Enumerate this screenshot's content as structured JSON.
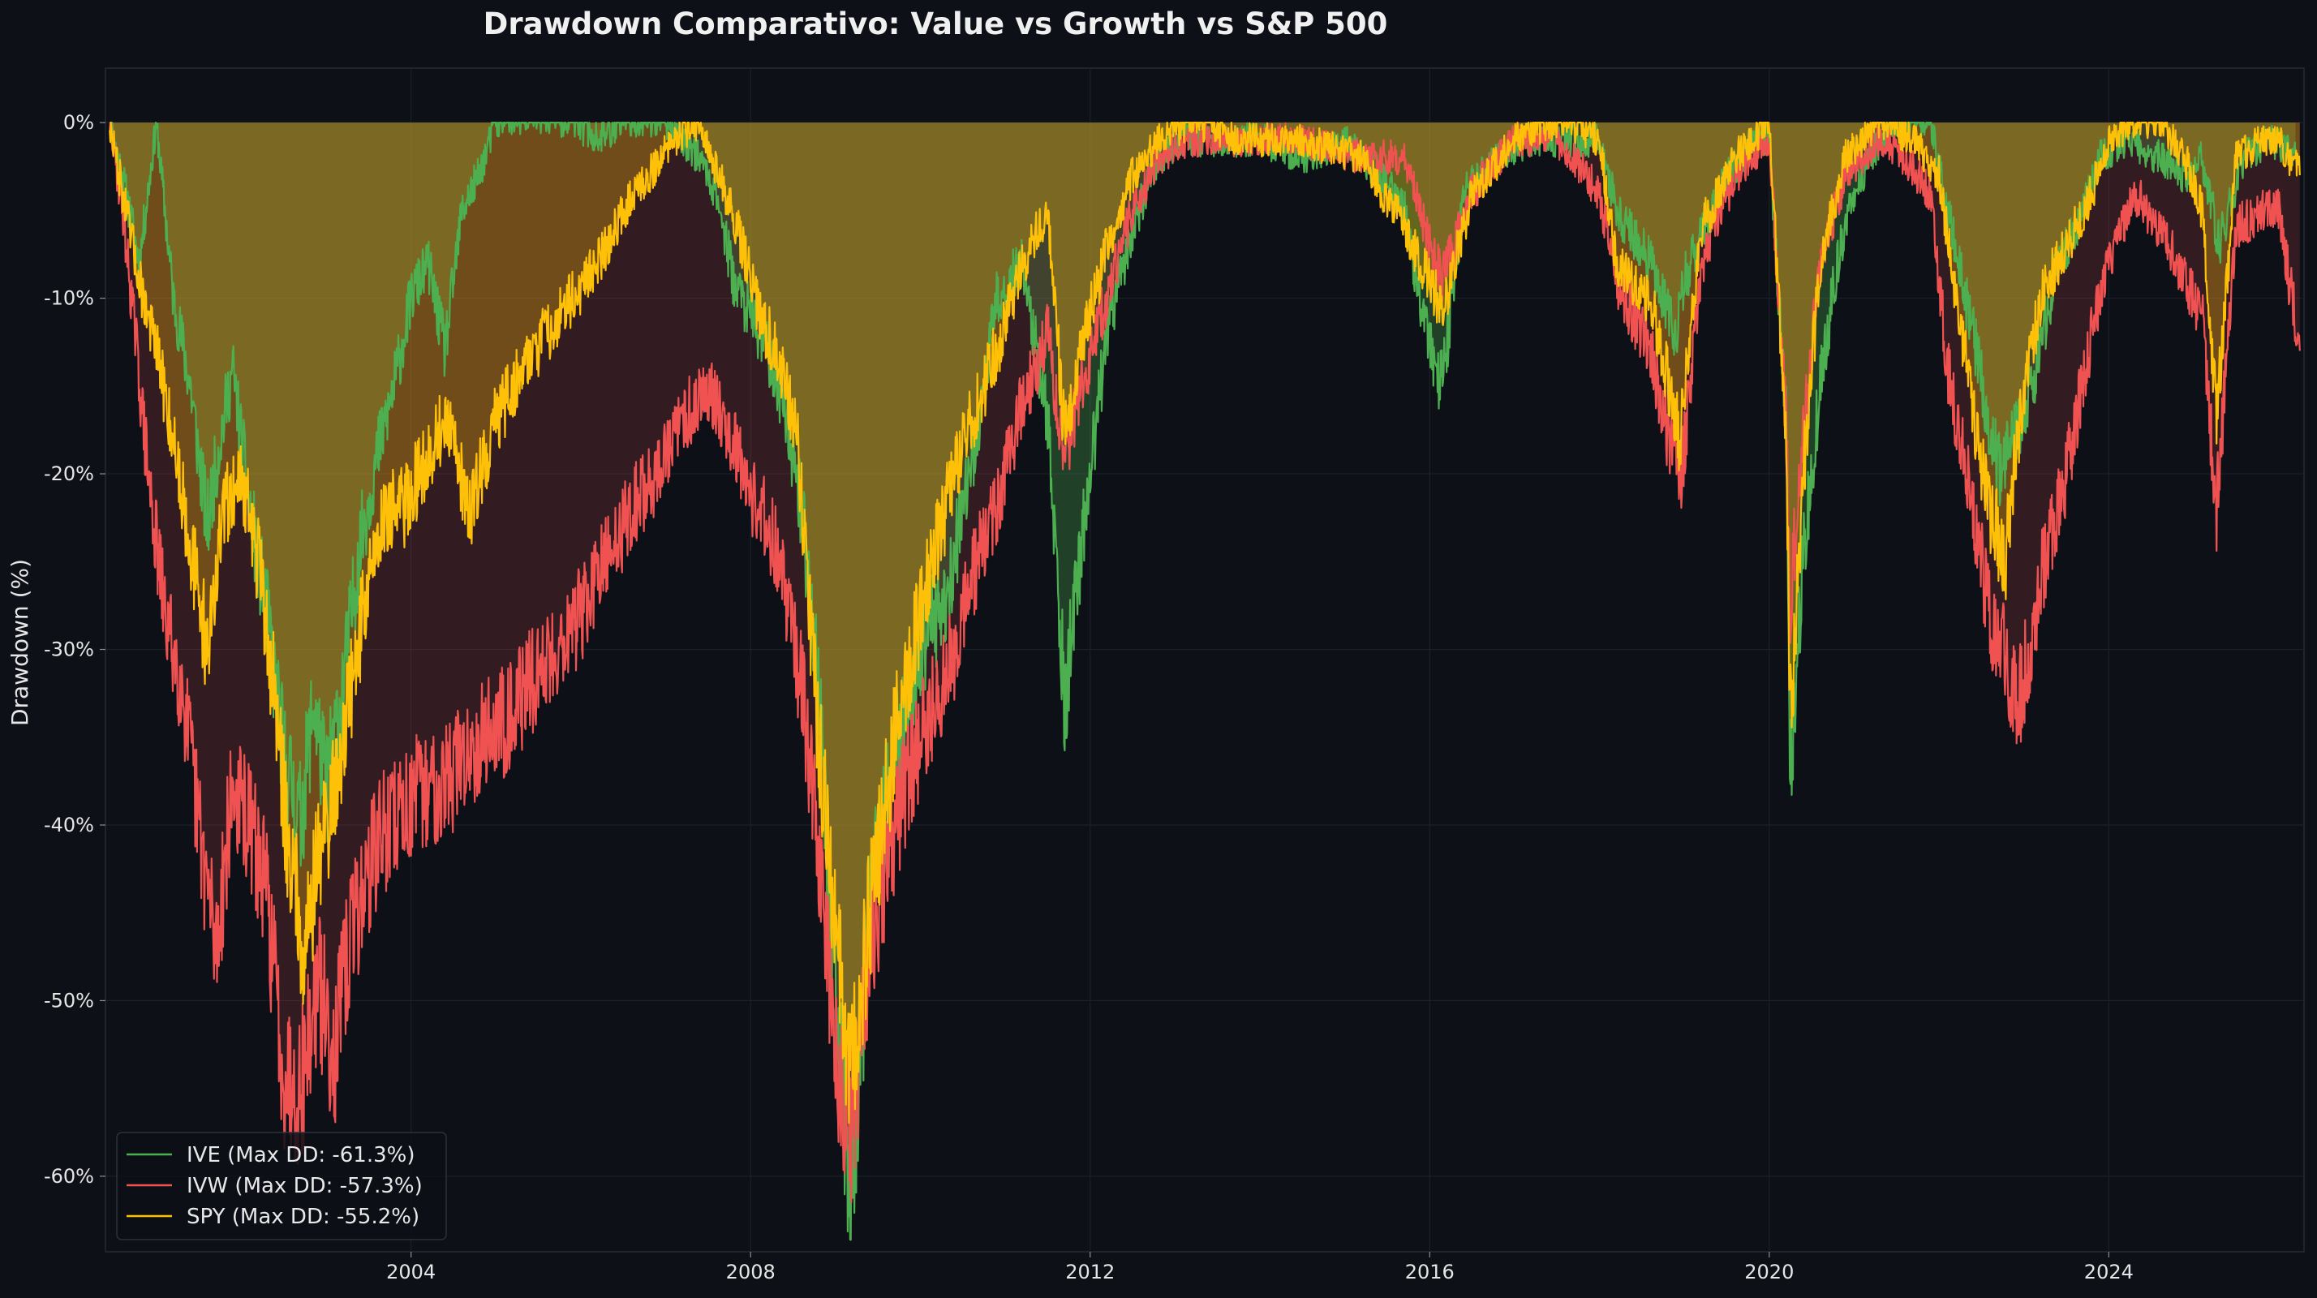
{
  "chart_data": {
    "type": "area",
    "title": "Drawdown Comparativo: Value vs Growth vs S&P 500",
    "xlabel": "",
    "ylabel": "Drawdown (%)",
    "xlim": [
      2000.4,
      2026.3
    ],
    "ylim": [
      -64.3,
      3.1
    ],
    "x_ticks": [
      2004,
      2008,
      2012,
      2016,
      2020,
      2024
    ],
    "x_tick_labels": [
      "2004",
      "2008",
      "2012",
      "2016",
      "2020",
      "2024"
    ],
    "y_ticks": [
      0,
      -10,
      -20,
      -30,
      -40,
      -50,
      -60
    ],
    "y_tick_labels": [
      "0%",
      "-10%",
      "-20%",
      "-30%",
      "-40%",
      "-50%",
      "-60%"
    ],
    "grid": true,
    "legend_position": "lower-left",
    "x_unit": "year",
    "series": [
      {
        "name": "IVE (Max DD: -61.3%)",
        "color": "#4caf50",
        "fill_color": "#4caf50",
        "x": [
          2000.45,
          2000.6,
          2000.8,
          2001.0,
          2001.2,
          2001.4,
          2001.6,
          2001.75,
          2001.9,
          2002.1,
          2002.3,
          2002.5,
          2002.7,
          2002.85,
          2003.0,
          2003.2,
          2003.4,
          2003.6,
          2003.8,
          2004.0,
          2004.2,
          2004.4,
          2004.6,
          2004.8,
          2005.0,
          2005.3,
          2005.6,
          2005.9,
          2006.2,
          2006.5,
          2006.8,
          2007.0,
          2007.2,
          2007.4,
          2007.6,
          2007.8,
          2008.0,
          2008.2,
          2008.4,
          2008.6,
          2008.8,
          2009.0,
          2009.18,
          2009.4,
          2009.7,
          2010.0,
          2010.3,
          2010.6,
          2010.9,
          2011.2,
          2011.5,
          2011.7,
          2011.9,
          2012.2,
          2012.5,
          2012.8,
          2013.1,
          2013.5,
          2014.0,
          2014.5,
          2015.0,
          2015.4,
          2015.7,
          2016.0,
          2016.15,
          2016.4,
          2016.8,
          2017.2,
          2017.6,
          2018.0,
          2018.2,
          2018.6,
          2018.9,
          2019.0,
          2019.4,
          2019.8,
          2020.0,
          2020.2,
          2020.25,
          2020.4,
          2020.6,
          2020.8,
          2021.0,
          2021.3,
          2021.6,
          2021.9,
          2022.1,
          2022.4,
          2022.7,
          2022.9,
          2023.1,
          2023.4,
          2023.7,
          2023.9,
          2024.2,
          2024.6,
          2024.9,
          2025.1,
          2025.3,
          2025.6,
          2025.9,
          2026.2
        ],
        "values": [
          0,
          -3,
          -8,
          0,
          -10,
          -15,
          -23,
          -18,
          -14,
          -22,
          -28,
          -36,
          -40,
          -33,
          -38,
          -32,
          -24,
          -19,
          -15,
          -10,
          -8,
          -13,
          -5,
          -3,
          0,
          0,
          0,
          0,
          -1,
          0,
          0,
          0,
          -1,
          -2,
          -4,
          -9,
          -11,
          -13,
          -16,
          -22,
          -32,
          -50,
          -61.3,
          -45,
          -36,
          -30,
          -27,
          -20,
          -10,
          -8,
          -17,
          -33,
          -24,
          -12,
          -6,
          -2,
          -1,
          -1,
          -1,
          -2,
          -1,
          -3,
          -5,
          -13,
          -15,
          -4,
          -2,
          -1,
          -1,
          -1,
          -5,
          -8,
          -12,
          -9,
          -4,
          -1,
          -1,
          -17,
          -37,
          -25,
          -15,
          -8,
          -4,
          -1,
          0,
          0,
          -5,
          -12,
          -20,
          -18,
          -15,
          -8,
          -5,
          -2,
          -1,
          -2,
          -3,
          -2,
          -7,
          -2,
          -1,
          -2
        ]
      },
      {
        "name": "IVW (Max DD: -57.3%)",
        "color": "#f05252",
        "fill_color": "#f05252",
        "x": [
          2000.45,
          2000.6,
          2000.75,
          2000.9,
          2001.1,
          2001.3,
          2001.5,
          2001.7,
          2001.9,
          2002.1,
          2002.3,
          2002.5,
          2002.7,
          2002.9,
          2003.1,
          2003.3,
          2003.6,
          2003.9,
          2004.2,
          2004.5,
          2004.8,
          2005.1,
          2005.4,
          2005.7,
          2006.0,
          2006.3,
          2006.6,
          2006.9,
          2007.2,
          2007.5,
          2007.8,
          2008.0,
          2008.3,
          2008.6,
          2008.85,
          2009.0,
          2009.18,
          2009.4,
          2009.7,
          2010.0,
          2010.3,
          2010.6,
          2010.9,
          2011.2,
          2011.5,
          2011.7,
          2011.9,
          2012.2,
          2012.5,
          2012.8,
          2013.2,
          2013.8,
          2014.5,
          2015.2,
          2015.7,
          2016.0,
          2016.15,
          2016.5,
          2017.0,
          2017.5,
          2018.0,
          2018.2,
          2018.6,
          2018.95,
          2019.2,
          2019.6,
          2020.0,
          2020.2,
          2020.25,
          2020.4,
          2020.6,
          2020.9,
          2021.3,
          2021.6,
          2021.9,
          2022.1,
          2022.4,
          2022.6,
          2022.8,
          2022.95,
          2023.2,
          2023.5,
          2023.8,
          2024.0,
          2024.3,
          2024.6,
          2024.9,
          2025.1,
          2025.27,
          2025.5,
          2025.8,
          2026.0,
          2026.25
        ],
        "values": [
          0,
          -5,
          -12,
          -20,
          -28,
          -32,
          -40,
          -47,
          -38,
          -40,
          -44,
          -54,
          -55,
          -49,
          -53,
          -46,
          -41,
          -39,
          -38,
          -37,
          -35,
          -34,
          -32,
          -30,
          -28,
          -25,
          -22,
          -20,
          -17,
          -15,
          -18,
          -21,
          -24,
          -32,
          -44,
          -53,
          -57.3,
          -48,
          -40,
          -35,
          -32,
          -26,
          -22,
          -16,
          -12,
          -19,
          -15,
          -10,
          -5,
          -2,
          -1,
          -1,
          -1,
          -2,
          -2,
          -7,
          -9,
          -4,
          -1,
          -1,
          -4,
          -9,
          -13,
          -21,
          -8,
          -3,
          -1,
          -17,
          -27,
          -18,
          -8,
          -3,
          -1,
          -2,
          -4,
          -14,
          -22,
          -28,
          -31,
          -33,
          -26,
          -20,
          -12,
          -8,
          -4,
          -6,
          -9,
          -11,
          -22,
          -6,
          -5,
          -5,
          -13
        ]
      },
      {
        "name": "SPY (Max DD: -55.2%)",
        "color": "#ffc107",
        "fill_color": "#ffc107",
        "x": [
          2000.45,
          2000.6,
          2000.8,
          2001.0,
          2001.2,
          2001.4,
          2001.6,
          2001.8,
          2002.0,
          2002.2,
          2002.4,
          2002.55,
          2002.75,
          2002.9,
          2003.1,
          2003.3,
          2003.5,
          2003.7,
          2003.9,
          2004.1,
          2004.4,
          2004.7,
          2005.0,
          2005.3,
          2005.6,
          2005.9,
          2006.2,
          2006.5,
          2006.8,
          2007.1,
          2007.4,
          2007.7,
          2007.9,
          2008.1,
          2008.3,
          2008.55,
          2008.8,
          2009.0,
          2009.18,
          2009.4,
          2009.7,
          2010.0,
          2010.3,
          2010.6,
          2010.9,
          2011.2,
          2011.5,
          2011.7,
          2011.9,
          2012.2,
          2012.5,
          2012.8,
          2013.2,
          2013.8,
          2014.5,
          2015.2,
          2015.7,
          2016.0,
          2016.15,
          2016.5,
          2017.0,
          2017.5,
          2018.0,
          2018.2,
          2018.6,
          2018.95,
          2019.2,
          2019.6,
          2020.0,
          2020.2,
          2020.25,
          2020.4,
          2020.6,
          2020.9,
          2021.3,
          2021.7,
          2022.0,
          2022.2,
          2022.45,
          2022.6,
          2022.78,
          2022.95,
          2023.2,
          2023.5,
          2023.8,
          2024.0,
          2024.3,
          2024.6,
          2024.9,
          2025.1,
          2025.27,
          2025.5,
          2025.8,
          2026.0,
          2026.25
        ],
        "values": [
          0,
          -4,
          -9,
          -13,
          -18,
          -24,
          -30,
          -22,
          -20,
          -25,
          -33,
          -41,
          -47,
          -42,
          -38,
          -32,
          -26,
          -22,
          -22,
          -20,
          -17,
          -22,
          -17,
          -14,
          -12,
          -10,
          -8,
          -5,
          -3,
          -1,
          0,
          -4,
          -7,
          -11,
          -13,
          -18,
          -35,
          -46,
          -55.2,
          -45,
          -35,
          -28,
          -22,
          -17,
          -13,
          -8,
          -5,
          -18,
          -13,
          -7,
          -3,
          -1,
          0,
          -1,
          -1,
          -2,
          -6,
          -9,
          -11,
          -4,
          -1,
          0,
          -1,
          -8,
          -10,
          -18,
          -6,
          -2,
          0,
          -18,
          -34,
          -20,
          -8,
          -2,
          0,
          -1,
          -3,
          -10,
          -18,
          -22,
          -25,
          -17,
          -10,
          -7,
          -4,
          -1,
          0,
          0,
          -2,
          -5,
          -17,
          -2,
          -1,
          -1,
          -3
        ]
      }
    ]
  }
}
